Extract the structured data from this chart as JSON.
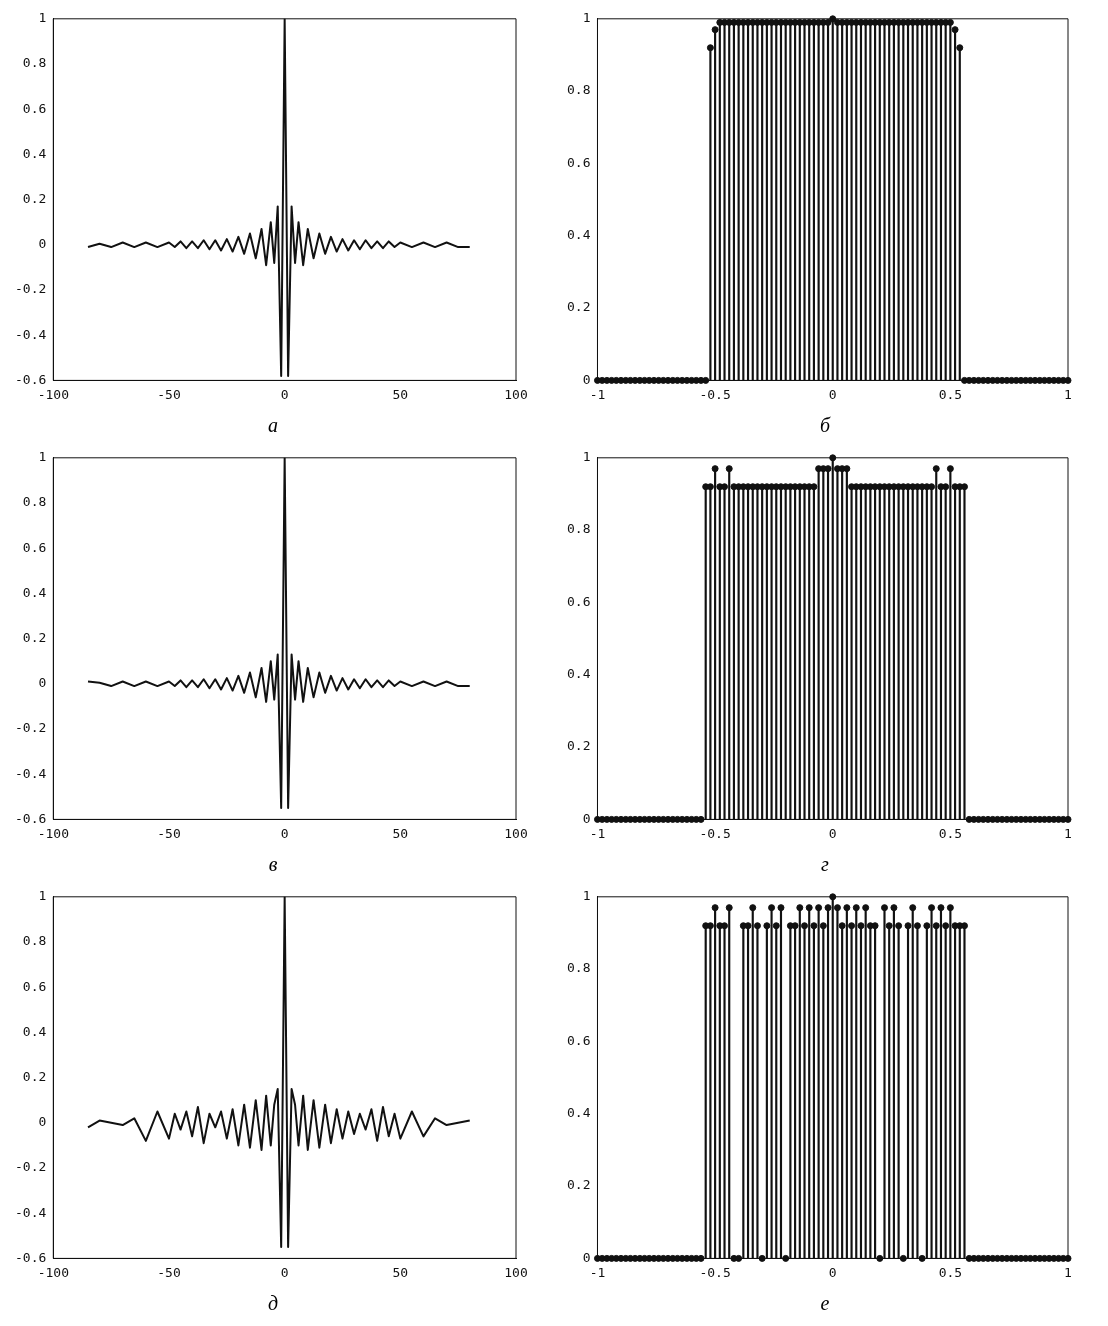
{
  "chart_data": [
    {
      "type": "line",
      "xlabel": "а",
      "x": [
        -85,
        -80,
        -75,
        -70,
        -65,
        -60,
        -55,
        -50,
        -47.5,
        -45,
        -42.5,
        -40,
        -37.5,
        -35,
        -32.5,
        -30,
        -27.5,
        -25,
        -22.5,
        -20,
        -17.5,
        -15,
        -12.5,
        -10,
        -8,
        -6,
        -4.5,
        -3,
        -1.5,
        0,
        1.5,
        3,
        4.5,
        6,
        8,
        10,
        12.5,
        15,
        17.5,
        20,
        22.5,
        25,
        27.5,
        30,
        32.5,
        35,
        37.5,
        40,
        42.5,
        45,
        47.5,
        50,
        55,
        60,
        65,
        70,
        75,
        80
      ],
      "series": [
        {
          "color": "#111111",
          "values": [
            -0.01,
            0.005,
            -0.01,
            0.01,
            -0.01,
            0.01,
            -0.01,
            0.01,
            -0.01,
            0.015,
            -0.015,
            0.015,
            -0.015,
            0.02,
            -0.02,
            0.02,
            -0.025,
            0.025,
            -0.03,
            0.035,
            -0.04,
            0.05,
            -0.06,
            0.07,
            -0.09,
            0.1,
            -0.08,
            0.17,
            -0.58,
            1,
            -0.58,
            0.17,
            -0.08,
            0.1,
            -0.09,
            0.07,
            -0.06,
            0.05,
            -0.04,
            0.035,
            -0.03,
            0.025,
            -0.025,
            0.02,
            -0.02,
            0.02,
            -0.015,
            0.015,
            -0.015,
            0.015,
            -0.01,
            0.01,
            -0.01,
            0.01,
            -0.01,
            0.01,
            -0.01,
            -0.01
          ]
        }
      ],
      "xlim": [
        -100,
        100
      ],
      "xticks": [
        -100,
        -50,
        0,
        50,
        100
      ],
      "ylim": [
        -0.6,
        1
      ],
      "yticks": [
        -0.6,
        -0.4,
        -0.2,
        0,
        0.2,
        0.4,
        0.6,
        0.8,
        1
      ],
      "marker": "none",
      "grid": false,
      "legend": false
    },
    {
      "type": "lollipop",
      "xlabel": "б",
      "x": [
        -1,
        -0.98,
        -0.96,
        -0.94,
        -0.92,
        -0.9,
        -0.88,
        -0.86,
        -0.84,
        -0.82,
        -0.8,
        -0.78,
        -0.76,
        -0.74,
        -0.72,
        -0.7,
        -0.68,
        -0.66,
        -0.64,
        -0.62,
        -0.6,
        -0.58,
        -0.56,
        -0.54,
        -0.52,
        -0.5,
        -0.48,
        -0.46,
        -0.44,
        -0.42,
        -0.4,
        -0.38,
        -0.36,
        -0.34,
        -0.32,
        -0.3,
        -0.28,
        -0.26,
        -0.24,
        -0.22,
        -0.2,
        -0.18,
        -0.16,
        -0.14,
        -0.12,
        -0.1,
        -0.08,
        -0.06,
        -0.04,
        -0.02,
        0,
        0.02,
        0.04,
        0.06,
        0.08,
        0.1,
        0.12,
        0.14,
        0.16,
        0.18,
        0.2,
        0.22,
        0.24,
        0.26,
        0.28,
        0.3,
        0.32,
        0.34,
        0.36,
        0.38,
        0.4,
        0.42,
        0.44,
        0.46,
        0.48,
        0.5,
        0.52,
        0.54,
        0.56,
        0.58,
        0.6,
        0.62,
        0.64,
        0.66,
        0.68,
        0.7,
        0.72,
        0.74,
        0.76,
        0.78,
        0.8,
        0.82,
        0.84,
        0.86,
        0.88,
        0.9,
        0.92,
        0.94,
        0.96,
        0.98,
        1
      ],
      "series": [
        {
          "color": "#111111",
          "values": [
            0,
            0,
            0,
            0,
            0,
            0,
            0,
            0,
            0,
            0,
            0,
            0,
            0,
            0,
            0,
            0,
            0,
            0,
            0,
            0,
            0,
            0,
            0,
            0,
            0.92,
            0.97,
            0.99,
            0.99,
            0.99,
            0.99,
            0.99,
            0.99,
            0.99,
            0.99,
            0.99,
            0.99,
            0.99,
            0.99,
            0.99,
            0.99,
            0.99,
            0.99,
            0.99,
            0.99,
            0.99,
            0.99,
            0.99,
            0.99,
            0.99,
            0.99,
            1,
            0.99,
            0.99,
            0.99,
            0.99,
            0.99,
            0.99,
            0.99,
            0.99,
            0.99,
            0.99,
            0.99,
            0.99,
            0.99,
            0.99,
            0.99,
            0.99,
            0.99,
            0.99,
            0.99,
            0.99,
            0.99,
            0.99,
            0.99,
            0.99,
            0.99,
            0.97,
            0.92,
            0,
            0,
            0,
            0,
            0,
            0,
            0,
            0,
            0,
            0,
            0,
            0,
            0,
            0,
            0,
            0,
            0,
            0,
            0,
            0,
            0,
            0,
            0
          ]
        }
      ],
      "xlim": [
        -1,
        1
      ],
      "xticks": [
        -1,
        -0.5,
        0,
        0.5,
        1
      ],
      "ylim": [
        0,
        1
      ],
      "yticks": [
        0,
        0.2,
        0.4,
        0.6,
        0.8,
        1
      ],
      "marker": "circle",
      "grid": false,
      "legend": false
    },
    {
      "type": "line",
      "xlabel": "в",
      "x": [
        -85,
        -80,
        -75,
        -70,
        -65,
        -60,
        -55,
        -50,
        -47.5,
        -45,
        -42.5,
        -40,
        -37.5,
        -35,
        -32.5,
        -30,
        -27.5,
        -25,
        -22.5,
        -20,
        -17.5,
        -15,
        -12.5,
        -10,
        -8,
        -6,
        -4.5,
        -3,
        -1.5,
        0,
        1.5,
        3,
        4.5,
        6,
        8,
        10,
        12.5,
        15,
        17.5,
        20,
        22.5,
        25,
        27.5,
        30,
        32.5,
        35,
        37.5,
        40,
        42.5,
        45,
        47.5,
        50,
        55,
        60,
        65,
        70,
        75,
        80
      ],
      "series": [
        {
          "color": "#111111",
          "values": [
            0.01,
            0.005,
            -0.01,
            0.01,
            -0.01,
            0.01,
            -0.01,
            0.01,
            -0.01,
            0.015,
            -0.015,
            0.015,
            -0.015,
            0.02,
            -0.02,
            0.02,
            -0.025,
            0.025,
            -0.03,
            0.035,
            -0.04,
            0.05,
            -0.06,
            0.07,
            -0.08,
            0.1,
            -0.07,
            0.13,
            -0.55,
            1,
            -0.55,
            0.13,
            -0.07,
            0.1,
            -0.08,
            0.07,
            -0.06,
            0.05,
            -0.04,
            0.035,
            -0.03,
            0.025,
            -0.025,
            0.02,
            -0.02,
            0.02,
            -0.015,
            0.015,
            -0.015,
            0.015,
            -0.01,
            0.01,
            -0.01,
            0.01,
            -0.01,
            0.01,
            -0.01,
            -0.01
          ]
        }
      ],
      "xlim": [
        -100,
        100
      ],
      "xticks": [
        -100,
        -50,
        0,
        50,
        100
      ],
      "ylim": [
        -0.6,
        1
      ],
      "yticks": [
        -0.6,
        -0.4,
        -0.2,
        0,
        0.2,
        0.4,
        0.6,
        0.8,
        1
      ],
      "marker": "none",
      "grid": false,
      "legend": false
    },
    {
      "type": "lollipop",
      "xlabel": "г",
      "x": [
        -1,
        -0.98,
        -0.96,
        -0.94,
        -0.92,
        -0.9,
        -0.88,
        -0.86,
        -0.84,
        -0.82,
        -0.8,
        -0.78,
        -0.76,
        -0.74,
        -0.72,
        -0.7,
        -0.68,
        -0.66,
        -0.64,
        -0.62,
        -0.6,
        -0.58,
        -0.56,
        -0.54,
        -0.52,
        -0.5,
        -0.48,
        -0.46,
        -0.44,
        -0.42,
        -0.4,
        -0.38,
        -0.36,
        -0.34,
        -0.32,
        -0.3,
        -0.28,
        -0.26,
        -0.24,
        -0.22,
        -0.2,
        -0.18,
        -0.16,
        -0.14,
        -0.12,
        -0.1,
        -0.08,
        -0.06,
        -0.04,
        -0.02,
        0,
        0.02,
        0.04,
        0.06,
        0.08,
        0.1,
        0.12,
        0.14,
        0.16,
        0.18,
        0.2,
        0.22,
        0.24,
        0.26,
        0.28,
        0.3,
        0.32,
        0.34,
        0.36,
        0.38,
        0.4,
        0.42,
        0.44,
        0.46,
        0.48,
        0.5,
        0.52,
        0.54,
        0.56,
        0.58,
        0.6,
        0.62,
        0.64,
        0.66,
        0.68,
        0.7,
        0.72,
        0.74,
        0.76,
        0.78,
        0.8,
        0.82,
        0.84,
        0.86,
        0.88,
        0.9,
        0.92,
        0.94,
        0.96,
        0.98,
        1
      ],
      "series": [
        {
          "color": "#111111",
          "values": [
            0,
            0,
            0,
            0,
            0,
            0,
            0,
            0,
            0,
            0,
            0,
            0,
            0,
            0,
            0,
            0,
            0,
            0,
            0,
            0,
            0,
            0,
            0,
            0.92,
            0.92,
            0.97,
            0.92,
            0.92,
            0.97,
            0.92,
            0.92,
            0.92,
            0.92,
            0.92,
            0.92,
            0.92,
            0.92,
            0.92,
            0.92,
            0.92,
            0.92,
            0.92,
            0.92,
            0.92,
            0.92,
            0.92,
            0.92,
            0.97,
            0.97,
            0.97,
            1,
            0.97,
            0.97,
            0.97,
            0.92,
            0.92,
            0.92,
            0.92,
            0.92,
            0.92,
            0.92,
            0.92,
            0.92,
            0.92,
            0.92,
            0.92,
            0.92,
            0.92,
            0.92,
            0.92,
            0.92,
            0.92,
            0.97,
            0.92,
            0.92,
            0.97,
            0.92,
            0.92,
            0.92,
            0,
            0,
            0,
            0,
            0,
            0,
            0,
            0,
            0,
            0,
            0,
            0,
            0,
            0,
            0,
            0,
            0,
            0,
            0,
            0,
            0,
            0
          ]
        }
      ],
      "xlim": [
        -1,
        1
      ],
      "xticks": [
        -1,
        -0.5,
        0,
        0.5,
        1
      ],
      "ylim": [
        0,
        1
      ],
      "yticks": [
        0,
        0.2,
        0.4,
        0.6,
        0.8,
        1
      ],
      "marker": "circle",
      "grid": false,
      "legend": false
    },
    {
      "type": "line",
      "xlabel": "д",
      "x": [
        -85,
        -80,
        -75,
        -70,
        -65,
        -60,
        -55,
        -50,
        -47.5,
        -45,
        -42.5,
        -40,
        -37.5,
        -35,
        -32.5,
        -30,
        -27.5,
        -25,
        -22.5,
        -20,
        -17.5,
        -15,
        -12.5,
        -10,
        -8,
        -6,
        -4.5,
        -3,
        -1.5,
        0,
        1.5,
        3,
        4.5,
        6,
        8,
        10,
        12.5,
        15,
        17.5,
        20,
        22.5,
        25,
        27.5,
        30,
        32.5,
        35,
        37.5,
        40,
        42.5,
        45,
        47.5,
        50,
        55,
        60,
        65,
        70,
        75,
        80
      ],
      "series": [
        {
          "color": "#111111",
          "values": [
            -0.02,
            0.01,
            0,
            -0.01,
            0.02,
            -0.08,
            0.05,
            -0.07,
            0.04,
            -0.03,
            0.05,
            -0.06,
            0.07,
            -0.09,
            0.04,
            -0.02,
            0.05,
            -0.07,
            0.06,
            -0.1,
            0.08,
            -0.11,
            0.1,
            -0.12,
            0.12,
            -0.1,
            0.08,
            0.15,
            -0.55,
            1,
            -0.55,
            0.15,
            0.08,
            -0.1,
            0.12,
            -0.12,
            0.1,
            -0.11,
            0.08,
            -0.09,
            0.06,
            -0.07,
            0.05,
            -0.05,
            0.04,
            -0.03,
            0.06,
            -0.08,
            0.07,
            -0.06,
            0.04,
            -0.07,
            0.05,
            -0.06,
            0.02,
            -0.01,
            0,
            0.01
          ]
        }
      ],
      "xlim": [
        -100,
        100
      ],
      "xticks": [
        -100,
        -50,
        0,
        50,
        100
      ],
      "ylim": [
        -0.6,
        1
      ],
      "yticks": [
        -0.6,
        -0.4,
        -0.2,
        0,
        0.2,
        0.4,
        0.6,
        0.8,
        1
      ],
      "marker": "none",
      "grid": false,
      "legend": false
    },
    {
      "type": "lollipop",
      "xlabel": "е",
      "x": [
        -1,
        -0.98,
        -0.96,
        -0.94,
        -0.92,
        -0.9,
        -0.88,
        -0.86,
        -0.84,
        -0.82,
        -0.8,
        -0.78,
        -0.76,
        -0.74,
        -0.72,
        -0.7,
        -0.68,
        -0.66,
        -0.64,
        -0.62,
        -0.6,
        -0.58,
        -0.56,
        -0.54,
        -0.52,
        -0.5,
        -0.48,
        -0.46,
        -0.44,
        -0.42,
        -0.4,
        -0.38,
        -0.36,
        -0.34,
        -0.32,
        -0.3,
        -0.28,
        -0.26,
        -0.24,
        -0.22,
        -0.2,
        -0.18,
        -0.16,
        -0.14,
        -0.12,
        -0.1,
        -0.08,
        -0.06,
        -0.04,
        -0.02,
        0,
        0.02,
        0.04,
        0.06,
        0.08,
        0.1,
        0.12,
        0.14,
        0.16,
        0.18,
        0.2,
        0.22,
        0.24,
        0.26,
        0.28,
        0.3,
        0.32,
        0.34,
        0.36,
        0.38,
        0.4,
        0.42,
        0.44,
        0.46,
        0.48,
        0.5,
        0.52,
        0.54,
        0.56,
        0.58,
        0.6,
        0.62,
        0.64,
        0.66,
        0.68,
        0.7,
        0.72,
        0.74,
        0.76,
        0.78,
        0.8,
        0.82,
        0.84,
        0.86,
        0.88,
        0.9,
        0.92,
        0.94,
        0.96,
        0.98,
        1
      ],
      "series": [
        {
          "color": "#111111",
          "values": [
            0,
            0,
            0,
            0,
            0,
            0,
            0,
            0,
            0,
            0,
            0,
            0,
            0,
            0,
            0,
            0,
            0,
            0,
            0,
            0,
            0,
            0,
            0,
            0.92,
            0.92,
            0.97,
            0.92,
            0.92,
            0.97,
            0,
            0,
            0.92,
            0.92,
            0.97,
            0.92,
            0,
            0.92,
            0.97,
            0.92,
            0.97,
            0,
            0.92,
            0.92,
            0.97,
            0.92,
            0.97,
            0.92,
            0.97,
            0.92,
            0.97,
            1,
            0.97,
            0.92,
            0.97,
            0.92,
            0.97,
            0.92,
            0.97,
            0.92,
            0.92,
            0,
            0.97,
            0.92,
            0.97,
            0.92,
            0,
            0.92,
            0.97,
            0.92,
            0,
            0.92,
            0.97,
            0.92,
            0.97,
            0.92,
            0.97,
            0.92,
            0.92,
            0.92,
            0,
            0,
            0,
            0,
            0,
            0,
            0,
            0,
            0,
            0,
            0,
            0,
            0,
            0,
            0,
            0,
            0,
            0,
            0,
            0,
            0,
            0
          ]
        }
      ],
      "xlim": [
        -1,
        1
      ],
      "xticks": [
        -1,
        -0.5,
        0,
        0.5,
        1
      ],
      "ylim": [
        0,
        1
      ],
      "yticks": [
        0,
        0.2,
        0.4,
        0.6,
        0.8,
        1
      ],
      "marker": "circle",
      "grid": false,
      "legend": false
    }
  ]
}
